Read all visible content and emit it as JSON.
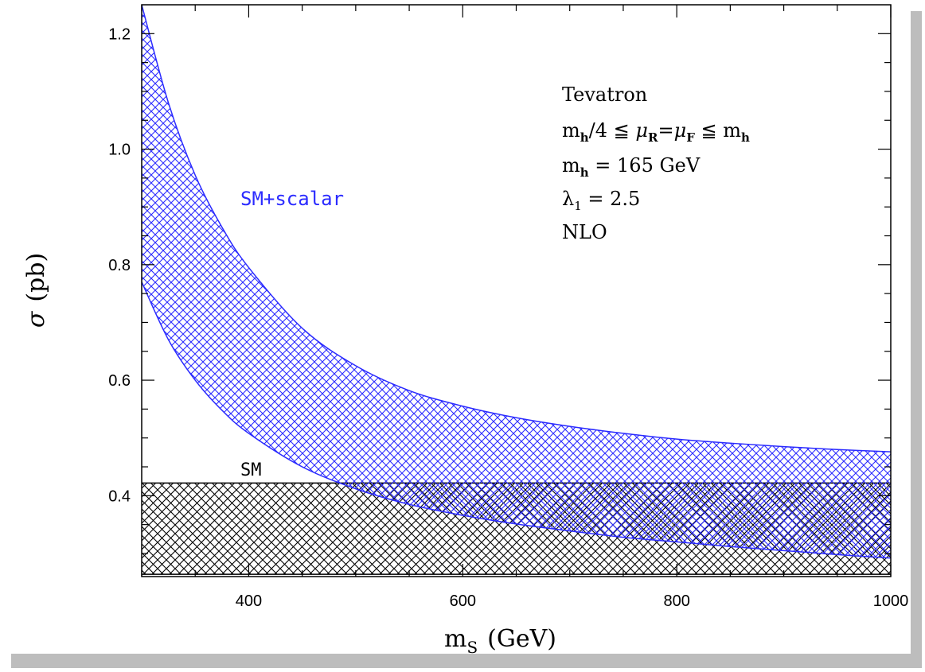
{
  "chart_data": {
    "type": "area",
    "xlabel": "m",
    "xlabel_sub": "S",
    "xlabel_unit": "(GeV)",
    "ylabel_sym": "σ",
    "ylabel_unit": "(pb)",
    "xlim": [
      300,
      1000
    ],
    "ylim": [
      0.26,
      1.25
    ],
    "x_ticks": [
      400,
      600,
      800,
      1000
    ],
    "y_ticks": [
      0.4,
      0.6,
      0.8,
      1.0,
      1.2
    ],
    "x_tick_labels": [
      "400",
      "600",
      "800",
      "1000"
    ],
    "y_tick_labels": [
      "0.4",
      "0.6",
      "0.8",
      "1.0",
      "1.2"
    ],
    "grid": false,
    "annotations": {
      "line1": "Tevatron",
      "line2_a": "m",
      "line2_a_sub": "h",
      "line2_b": "/4 ≦ ",
      "line2_mu": "μ",
      "line2_mu_r_sub": "R",
      "line2_eq": "=",
      "line2_mu_f_sub": "F",
      "line2_c": " ≦ m",
      "line2_c_sub": "h",
      "line3_a": "m",
      "line3_sub": "h",
      "line3_b": " = 165 GeV",
      "line4_a": "λ",
      "line4_sub": "1",
      "line4_b": " = 2.5",
      "line5": "NLO"
    },
    "series": [
      {
        "name": "SM+scalar",
        "color": "#2b2bff",
        "style": "hatched band",
        "x": [
          300,
          325,
          350,
          375,
          400,
          450,
          500,
          550,
          600,
          650,
          700,
          750,
          800,
          850,
          900,
          950,
          1000
        ],
        "upper": [
          1.25,
          1.08,
          0.955,
          0.865,
          0.795,
          0.69,
          0.625,
          0.582,
          0.555,
          0.535,
          0.52,
          0.508,
          0.498,
          0.491,
          0.485,
          0.48,
          0.476
        ],
        "lower": [
          0.77,
          0.67,
          0.6,
          0.548,
          0.508,
          0.45,
          0.412,
          0.385,
          0.366,
          0.351,
          0.339,
          0.328,
          0.32,
          0.312,
          0.305,
          0.298,
          0.292
        ]
      },
      {
        "name": "SM",
        "color": "#000000",
        "style": "hatched band",
        "x": [
          300,
          1000
        ],
        "upper": [
          0.422,
          0.422
        ],
        "lower": [
          0.264,
          0.264
        ]
      }
    ]
  }
}
